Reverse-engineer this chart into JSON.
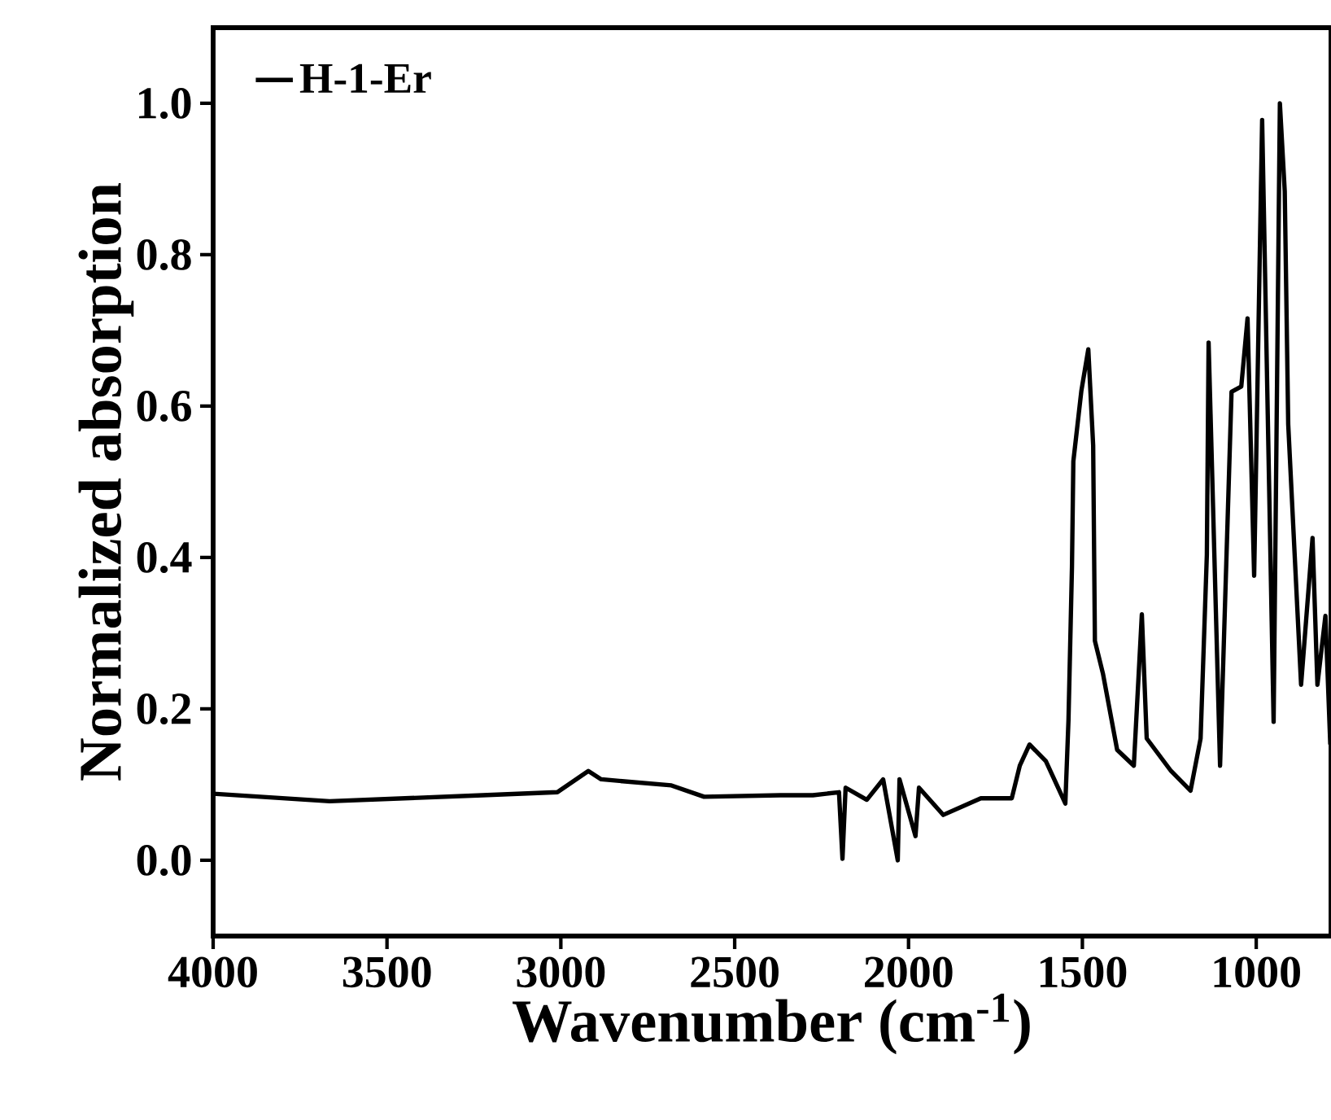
{
  "chart_data": {
    "type": "line",
    "xlabel": "Wavenumber (cm$^{-1}$)",
    "ylabel": "Normalized absorption",
    "xlim": [
      4000,
      785
    ],
    "ylim": [
      -0.1,
      1.1
    ],
    "xticks": [
      4000,
      3500,
      3000,
      2500,
      2000,
      1500,
      1000
    ],
    "yticks": [
      {
        "value": 0,
        "label": "0.0"
      },
      {
        "value": 0.2,
        "label": "0.2"
      },
      {
        "value": 0.4,
        "label": "0.4"
      },
      {
        "value": 0.6,
        "label": "0.6"
      },
      {
        "value": 0.8,
        "label": "0.8"
      },
      {
        "value": 1,
        "label": "1.0"
      }
    ],
    "legend": "top left",
    "line_style": "solid",
    "marker": "none",
    "series": [
      {
        "name": "H-1-Er",
        "color": "#000000",
        "x": [
          4000,
          3665,
          3225,
          3010,
          2921,
          2884,
          2682,
          2588,
          2368,
          2275,
          2200,
          2190,
          2181,
          2120,
          2073,
          2031,
          2026,
          1980,
          1970,
          1900,
          1792,
          1703,
          1680,
          1652,
          1605,
          1549,
          1540,
          1530,
          1526,
          1503,
          1483,
          1469,
          1464,
          1441,
          1400,
          1352,
          1329,
          1315,
          1245,
          1189,
          1160,
          1142,
          1137,
          1104,
          1071,
          1043,
          1025,
          1006,
          983,
          950,
          932,
          918,
          908,
          871,
          838,
          824,
          801,
          787
        ],
        "values": [
          0.088,
          0.078,
          0.086,
          0.09,
          0.118,
          0.107,
          0.099,
          0.084,
          0.086,
          0.086,
          0.09,
          0.002,
          0.096,
          0.08,
          0.107,
          0.0,
          0.107,
          0.032,
          0.096,
          0.06,
          0.082,
          0.082,
          0.125,
          0.153,
          0.131,
          0.075,
          0.185,
          0.387,
          0.527,
          0.62,
          0.675,
          0.548,
          0.29,
          0.247,
          0.146,
          0.125,
          0.325,
          0.161,
          0.118,
          0.092,
          0.161,
          0.404,
          0.684,
          0.125,
          0.619,
          0.626,
          0.716,
          0.376,
          0.978,
          0.183,
          1.0,
          0.884,
          0.576,
          0.232,
          0.426,
          0.232,
          0.323,
          0.153
        ]
      }
    ]
  }
}
